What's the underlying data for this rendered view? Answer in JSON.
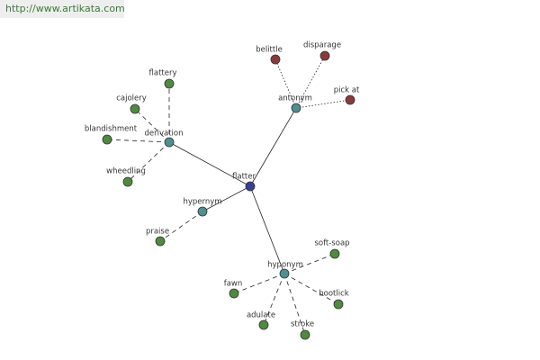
{
  "header": {
    "url": "http://www.artikata.com"
  },
  "nodes": [
    {
      "label": "flatter"
    },
    {
      "label": "derivation"
    },
    {
      "label": "antonym"
    },
    {
      "label": "hypernym"
    },
    {
      "label": "hyponym"
    },
    {
      "label": "flattery"
    },
    {
      "label": "cajolery"
    },
    {
      "label": "blandishment"
    },
    {
      "label": "wheedling"
    },
    {
      "label": "belittle"
    },
    {
      "label": "disparage"
    },
    {
      "label": "pick at"
    },
    {
      "label": "praise"
    },
    {
      "label": "soft-soap"
    },
    {
      "label": "fawn"
    },
    {
      "label": "bootlick"
    },
    {
      "label": "adulate"
    },
    {
      "label": "stroke"
    }
  ]
}
